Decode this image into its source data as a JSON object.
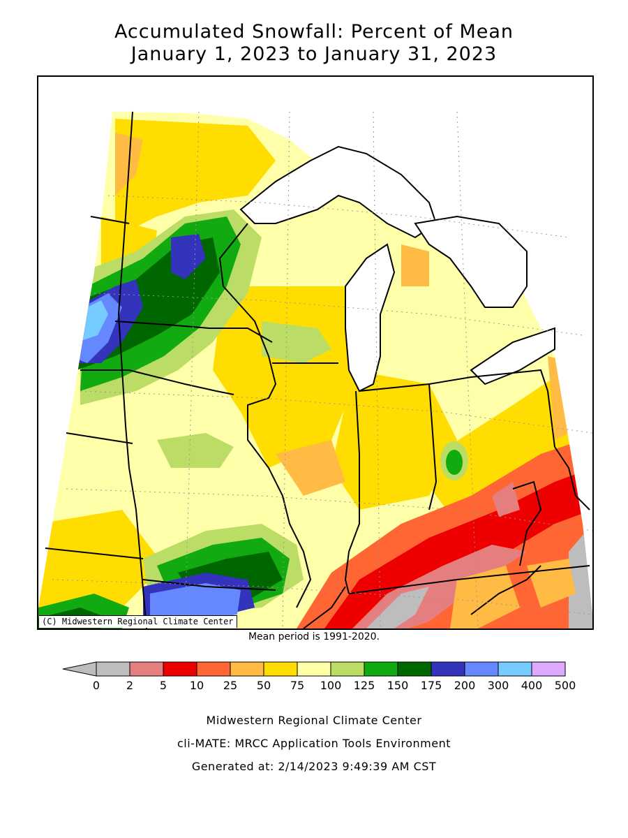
{
  "title": {
    "line1": "Accumulated Snowfall: Percent of Mean",
    "line2": "January 1, 2023 to January 31, 2023"
  },
  "map": {
    "credit": "(C) Midwestern Regional Climate Center",
    "mean_period": "Mean period is 1991-2020."
  },
  "legend": {
    "breaks": [
      "0",
      "2",
      "5",
      "10",
      "25",
      "50",
      "75",
      "100",
      "125",
      "150",
      "175",
      "200",
      "300",
      "400",
      "500"
    ],
    "colors": [
      "#bdbdbd",
      "#e57f7f",
      "#ee0000",
      "#ff6633",
      "#ffbb44",
      "#ffdd00",
      "#ffffaa",
      "#bbdd66",
      "#11aa11",
      "#006600",
      "#3333bb",
      "#6688ff",
      "#77ccff",
      "#ddaaff"
    ],
    "below_color": "#bdbdbd"
  },
  "footer": {
    "line1": "Midwestern Regional Climate Center",
    "line2": "cli-MATE: MRCC Application Tools Environment",
    "line3": "Generated at: 2/14/2023 9:49:39 AM CST"
  }
}
